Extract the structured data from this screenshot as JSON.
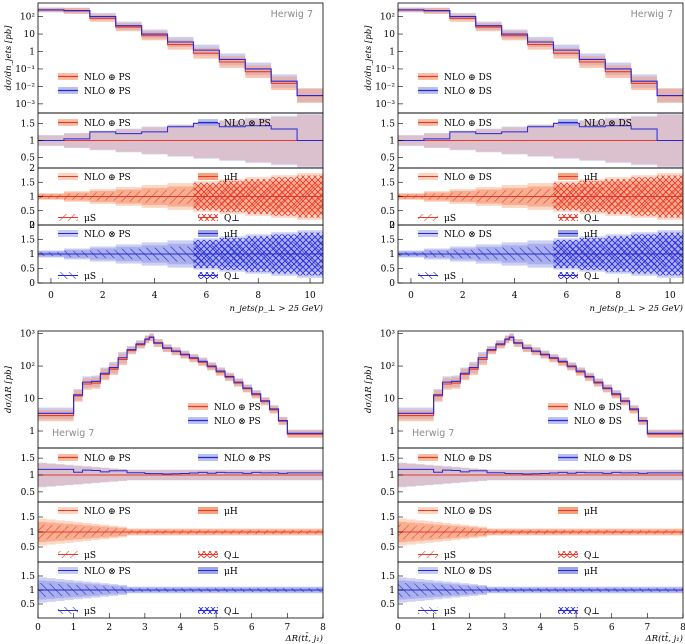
{
  "colors": {
    "red": "#e8382a",
    "blue": "#2727d8",
    "red_band": "#f7a27f",
    "blue_band": "#9ea6e8",
    "red_light": "#fbd3bf",
    "blue_light": "#c7cbf2"
  },
  "chart_data": [
    {
      "id": "njets-merged-PS",
      "type": "step-histogram",
      "generator": "Herwig 7",
      "xlabel": "n_jets(p_⊥ > 25 GeV)",
      "ylabel": "dσ/dn_jets [pb]",
      "edges": [
        -0.5,
        0.5,
        1.5,
        2.5,
        3.5,
        4.5,
        5.5,
        6.5,
        7.5,
        8.5,
        9.5,
        10.5
      ],
      "xticks": [
        "0",
        "2",
        "4",
        "6",
        "8",
        "10"
      ],
      "yticks": [
        "10²",
        "10",
        "1",
        "10⁻¹",
        "10⁻²",
        "10⁻³"
      ],
      "series": [
        {
          "name": "NLO ⊕ PS",
          "values": [
            240,
            210,
            80,
            25,
            8,
            2.5,
            0.8,
            0.25,
            0.07,
            0.015,
            0.003
          ]
        },
        {
          "name": "NLO ⊗ PS",
          "values": [
            240,
            220,
            100,
            30,
            10,
            3.5,
            1.2,
            0.35,
            0.1,
            0.02,
            0.003
          ]
        }
      ],
      "ratio_yticks": [
        "1.5",
        "1",
        "0.5"
      ],
      "ratio_legend": [
        "NLO ⊕ PS",
        "NLO ⊗ PS"
      ],
      "variation_panels": [
        {
          "legend": [
            "NLO ⊕ PS",
            "μH",
            "μS",
            "Q⊥"
          ]
        },
        {
          "legend": [
            "NLO ⊗ PS",
            "μH",
            "μS",
            "Q⊥"
          ]
        }
      ]
    },
    {
      "id": "njets-merged-DS",
      "type": "step-histogram",
      "generator": "Herwig 7",
      "xlabel": "n_jets(p_⊥ > 25 GeV)",
      "ylabel": "dσ/dn_jets [pb]",
      "edges": [
        -0.5,
        0.5,
        1.5,
        2.5,
        3.5,
        4.5,
        5.5,
        6.5,
        7.5,
        8.5,
        9.5,
        10.5
      ],
      "xticks": [
        "0",
        "2",
        "4",
        "6",
        "8",
        "10"
      ],
      "yticks": [
        "10²",
        "10",
        "1",
        "10⁻¹",
        "10⁻²",
        "10⁻³"
      ],
      "series": [
        {
          "name": "NLO ⊕ DS",
          "values": [
            240,
            210,
            80,
            25,
            8,
            2.5,
            0.8,
            0.25,
            0.07,
            0.015,
            0.003
          ]
        },
        {
          "name": "NLO ⊗ DS",
          "values": [
            240,
            220,
            100,
            30,
            10,
            3.5,
            1.2,
            0.35,
            0.1,
            0.02,
            0.003
          ]
        }
      ],
      "ratio_yticks": [
        "1.5",
        "1",
        "0.5"
      ],
      "ratio_legend": [
        "NLO ⊕ DS",
        "NLO ⊗ DS"
      ],
      "variation_panels": [
        {
          "legend": [
            "NLO ⊕ DS",
            "μH",
            "μS",
            "Q⊥"
          ]
        },
        {
          "legend": [
            "NLO ⊗ DS",
            "μH",
            "μS",
            "Q⊥"
          ]
        }
      ]
    },
    {
      "id": "dR-merged-PS",
      "type": "step-histogram",
      "generator": "Herwig 7",
      "xlabel": "ΔR(tt̄, j₁)",
      "ylabel": "dσ/ΔR [pb]",
      "edges": [
        0,
        0.25,
        0.5,
        0.75,
        1,
        1.25,
        1.5,
        1.75,
        2,
        2.25,
        2.5,
        2.75,
        3,
        3.125,
        3.25,
        3.5,
        3.75,
        4,
        4.25,
        4.5,
        4.75,
        5,
        5.25,
        5.5,
        5.75,
        6,
        6.25,
        6.5,
        6.75,
        7,
        8
      ],
      "xticks": [
        "0",
        "1",
        "2",
        "3",
        "4",
        "5",
        "6",
        "7",
        "8"
      ],
      "yticks": [
        "10³",
        "10²",
        "10",
        "1"
      ],
      "series": [
        {
          "name": "NLO ⊕ PS",
          "values": [
            3,
            3,
            3,
            3,
            12,
            28,
            30,
            55,
            80,
            160,
            300,
            450,
            650,
            750,
            500,
            350,
            280,
            220,
            170,
            130,
            95,
            65,
            45,
            30,
            20,
            13,
            8,
            4.5,
            2,
            0.8
          ]
        },
        {
          "name": "NLO ⊗ PS",
          "values": [
            3.5,
            3.5,
            3.5,
            3.5,
            13,
            32,
            34,
            60,
            90,
            180,
            320,
            480,
            680,
            780,
            520,
            360,
            290,
            230,
            180,
            140,
            100,
            70,
            48,
            32,
            21,
            14,
            8.5,
            4.8,
            2.1,
            0.85
          ]
        }
      ],
      "ratio_yticks": [
        "1.5",
        "1",
        "0.5"
      ],
      "ratio_legend": [
        "NLO ⊕ PS",
        "NLO ⊗ PS"
      ],
      "variation_panels": [
        {
          "legend": [
            "NLO ⊕ PS",
            "μH",
            "μS",
            "Q⊥"
          ]
        },
        {
          "legend": [
            "NLO ⊗ PS",
            "μH",
            "μS",
            "Q⊥"
          ]
        }
      ]
    },
    {
      "id": "dR-merged-DS",
      "type": "step-histogram",
      "generator": "Herwig 7",
      "xlabel": "ΔR(tt̄, j₁)",
      "ylabel": "dσ/ΔR [pb]",
      "edges": [
        0,
        0.25,
        0.5,
        0.75,
        1,
        1.25,
        1.5,
        1.75,
        2,
        2.25,
        2.5,
        2.75,
        3,
        3.125,
        3.25,
        3.5,
        3.75,
        4,
        4.25,
        4.5,
        4.75,
        5,
        5.25,
        5.5,
        5.75,
        6,
        6.25,
        6.5,
        6.75,
        7,
        8
      ],
      "xticks": [
        "0",
        "1",
        "2",
        "3",
        "4",
        "5",
        "6",
        "7",
        "8"
      ],
      "yticks": [
        "10³",
        "10²",
        "10",
        "1"
      ],
      "series": [
        {
          "name": "NLO ⊕ DS",
          "values": [
            3,
            3,
            3,
            3,
            12,
            28,
            30,
            55,
            80,
            160,
            300,
            450,
            650,
            750,
            500,
            350,
            280,
            220,
            170,
            130,
            95,
            65,
            45,
            30,
            20,
            13,
            8,
            4.5,
            2,
            0.8
          ]
        },
        {
          "name": "NLO ⊗ DS",
          "values": [
            3.5,
            3.5,
            3.5,
            3.5,
            13,
            32,
            34,
            60,
            90,
            180,
            320,
            480,
            680,
            780,
            520,
            360,
            290,
            230,
            180,
            140,
            100,
            70,
            48,
            32,
            21,
            14,
            8.5,
            4.8,
            2.1,
            0.85
          ]
        }
      ],
      "ratio_yticks": [
        "1.5",
        "1",
        "0.5"
      ],
      "ratio_legend": [
        "NLO ⊕ DS",
        "NLO ⊗ DS"
      ],
      "variation_panels": [
        {
          "legend": [
            "NLO ⊕ DS",
            "μH",
            "μS",
            "Q⊥"
          ]
        },
        {
          "legend": [
            "NLO ⊗ DS",
            "μH",
            "μS",
            "Q⊥"
          ]
        }
      ]
    }
  ]
}
